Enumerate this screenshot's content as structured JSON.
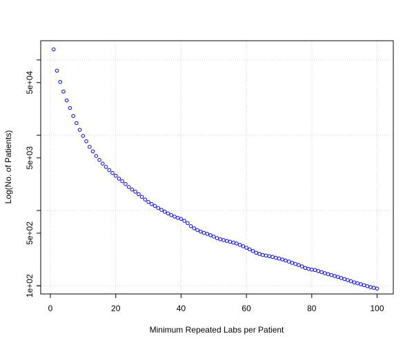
{
  "chart_data": {
    "type": "scatter",
    "title": "",
    "xlabel": "Minimum Repeated Labs per Patient",
    "ylabel": "Log(No. of Patients)",
    "xlim": [
      -2.96,
      104.96
    ],
    "ylim": [
      78,
      180000
    ],
    "y_scale": "log",
    "grid": true,
    "legend": "none",
    "x_ticks": [
      0,
      20,
      40,
      60,
      80,
      100
    ],
    "x_tick_labels": [
      "0",
      "20",
      "40",
      "60",
      "80",
      "100"
    ],
    "y_ticks": [
      100,
      500,
      5000,
      50000
    ],
    "y_tick_labels": [
      "1e+02",
      "5e+02",
      "5e+03",
      "5e+04"
    ],
    "y_gridlines": [
      100,
      1000,
      10000,
      100000
    ],
    "x_gridlines": [
      0,
      20,
      40,
      60,
      80,
      100
    ],
    "series": [
      {
        "color": "#0000ff",
        "marker": "open-circle",
        "x": [
          1,
          2,
          3,
          4,
          5,
          6,
          7,
          8,
          9,
          10,
          11,
          12,
          13,
          14,
          15,
          16,
          17,
          18,
          19,
          20,
          21,
          22,
          23,
          24,
          25,
          26,
          27,
          28,
          29,
          30,
          31,
          32,
          33,
          34,
          35,
          36,
          37,
          38,
          39,
          40,
          41,
          42,
          43,
          44,
          45,
          46,
          47,
          48,
          49,
          50,
          51,
          52,
          53,
          54,
          55,
          56,
          57,
          58,
          59,
          60,
          61,
          62,
          63,
          64,
          65,
          66,
          67,
          68,
          69,
          70,
          71,
          72,
          73,
          74,
          75,
          76,
          77,
          78,
          79,
          80,
          81,
          82,
          83,
          84,
          85,
          86,
          87,
          88,
          89,
          90,
          91,
          92,
          93,
          94,
          95,
          96,
          97,
          98,
          99,
          100
        ],
        "y": [
          138000,
          72000,
          51000,
          38000,
          29000,
          23000,
          18000,
          14500,
          11800,
          9800,
          8300,
          7000,
          6100,
          5300,
          4700,
          4200,
          3800,
          3450,
          3150,
          2900,
          2650,
          2450,
          2250,
          2050,
          1900,
          1780,
          1650,
          1520,
          1400,
          1300,
          1220,
          1150,
          1080,
          1020,
          965,
          915,
          870,
          830,
          800,
          775,
          730,
          680,
          620,
          580,
          550,
          525,
          505,
          490,
          470,
          450,
          430,
          415,
          405,
          395,
          385,
          375,
          365,
          350,
          335,
          320,
          305,
          290,
          275,
          265,
          257,
          252,
          248,
          242,
          236,
          230,
          224,
          217,
          210,
          202,
          195,
          189,
          181,
          173,
          168,
          164,
          162,
          157,
          152,
          147,
          143,
          139,
          135,
          131,
          127,
          123,
          119,
          115,
          111,
          108,
          105,
          102,
          99,
          96,
          94,
          92
        ]
      }
    ]
  }
}
